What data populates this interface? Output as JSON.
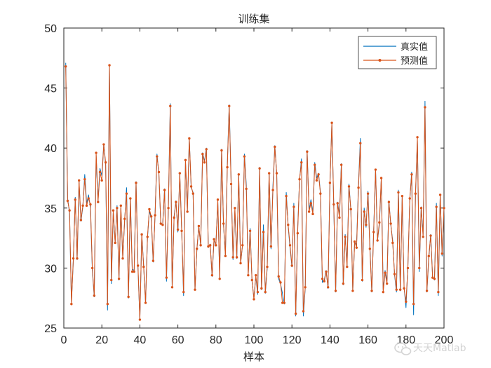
{
  "chart_data": {
    "type": "line",
    "title": "训练集",
    "xlabel": "样本",
    "ylabel": "",
    "xlim": [
      0,
      200
    ],
    "ylim": [
      25,
      50
    ],
    "xticks": [
      0,
      20,
      40,
      60,
      80,
      100,
      120,
      140,
      160,
      180,
      200
    ],
    "yticks": [
      25,
      30,
      35,
      40,
      45,
      50
    ],
    "grid": false,
    "legend_position": "top-right",
    "x": [
      1,
      2,
      3,
      4,
      5,
      6,
      7,
      8,
      9,
      10,
      11,
      12,
      13,
      14,
      15,
      16,
      17,
      18,
      19,
      20,
      21,
      22,
      23,
      24,
      25,
      26,
      27,
      28,
      29,
      30,
      31,
      32,
      33,
      34,
      35,
      36,
      37,
      38,
      39,
      40,
      41,
      42,
      43,
      44,
      45,
      46,
      47,
      48,
      49,
      50,
      51,
      52,
      53,
      54,
      55,
      56,
      57,
      58,
      59,
      60,
      61,
      62,
      63,
      64,
      65,
      66,
      67,
      68,
      69,
      70,
      71,
      72,
      73,
      74,
      75,
      76,
      77,
      78,
      79,
      80,
      81,
      82,
      83,
      84,
      85,
      86,
      87,
      88,
      89,
      90,
      91,
      92,
      93,
      94,
      95,
      96,
      97,
      98,
      99,
      100,
      101,
      102,
      103,
      104,
      105,
      106,
      107,
      108,
      109,
      110,
      111,
      112,
      113,
      114,
      115,
      116,
      117,
      118,
      119,
      120,
      121,
      122,
      123,
      124,
      125,
      126,
      127,
      128,
      129,
      130,
      131,
      132,
      133,
      134,
      135,
      136,
      137,
      138,
      139,
      140,
      141,
      142,
      143,
      144,
      145,
      146,
      147,
      148,
      149,
      150,
      151,
      152,
      153,
      154,
      155,
      156,
      157,
      158,
      159,
      160,
      161,
      162,
      163,
      164,
      165,
      166,
      167,
      168,
      169,
      170,
      171,
      172,
      173,
      174,
      175,
      176,
      177,
      178,
      179,
      180,
      181,
      182,
      183,
      184,
      185,
      186,
      187,
      188,
      189,
      190,
      191,
      192,
      193,
      194,
      195,
      196,
      197,
      198,
      199,
      200
    ],
    "series": [
      {
        "name": "真实值",
        "color": "#0072BD",
        "marker": "none",
        "values": [
          47.1,
          35.8,
          34.6,
          27.2,
          30.6,
          35.9,
          30.7,
          37.2,
          33.9,
          35.1,
          37.8,
          35.4,
          36.1,
          35.0,
          29.8,
          27.6,
          39.4,
          35.6,
          38.3,
          37.7,
          40.3,
          38.6,
          26.5,
          46.9,
          28.7,
          34.6,
          32.1,
          35.2,
          29.0,
          35.0,
          30.9,
          33.9,
          36.7,
          27.5,
          35.8,
          29.9,
          29.8,
          37.2,
          30.0,
          25.7,
          32.8,
          30.2,
          27.1,
          32.5,
          34.8,
          34.1,
          30.5,
          34.5,
          39.5,
          37.8,
          33.8,
          33.6,
          36.6,
          28.9,
          35.2,
          43.7,
          28.4,
          34.3,
          35.6,
          33.0,
          37.8,
          33.2,
          27.7,
          38.9,
          34.8,
          40.8,
          36.7,
          36.3,
          28.2,
          31.5,
          33.5,
          31.9,
          39.6,
          38.9,
          40.0,
          31.7,
          32.0,
          29.3,
          32.3,
          32.0,
          35.5,
          29.2,
          39.9,
          33.6,
          31.1,
          38.6,
          43.6,
          37.3,
          30.7,
          34.8,
          30.8,
          37.8,
          30.4,
          31.9,
          39.5,
          36.9,
          29.4,
          33.3,
          28.9,
          27.5,
          29.3,
          27.8,
          38.4,
          28.2,
          33.6,
          27.9,
          30.0,
          37.9,
          31.6,
          36.8,
          40.2,
          37.8,
          29.1,
          28.7,
          27.9,
          27.0,
          36.3,
          33.5,
          31.7,
          30.1,
          35.4,
          26.0,
          33.2,
          37.3,
          39.1,
          26.0,
          28.3,
          39.8,
          34.8,
          35.7,
          34.6,
          38.8,
          37.5,
          37.9,
          36.3,
          28.8,
          29.0,
          29.8,
          28.3,
          37.0,
          42.1,
          35.2,
          28.0,
          35.5,
          34.4,
          38.7,
          28.6,
          32.8,
          30.2,
          37.0,
          34.8,
          28.1,
          32.2,
          31.9,
          36.9,
          40.8,
          28.9,
          35.0,
          33.4,
          36.4,
          31.9,
          28.0,
          33.2,
          38.2,
          32.3,
          33.6,
          37.4,
          28.2,
          29.8,
          28.9,
          35.6,
          33.6,
          32.3,
          29.4,
          28.0,
          36.5,
          28.1,
          35.9,
          28.4,
          26.7,
          30.2,
          35.7,
          38.0,
          26.1,
          36.1,
          40.6,
          29.7,
          35.1,
          32.8,
          43.9,
          28.0,
          30.8,
          32.8,
          29.3,
          29.0,
          35.4,
          27.7,
          36.1,
          31.0,
          35.1
        ]
      },
      {
        "name": "预测值",
        "color": "#D95319",
        "marker": "dot",
        "values": [
          46.8,
          35.6,
          34.8,
          27.0,
          30.8,
          35.7,
          30.8,
          37.3,
          34.0,
          35.2,
          37.4,
          35.2,
          35.8,
          35.3,
          30.0,
          27.7,
          39.6,
          35.5,
          38.0,
          37.3,
          40.3,
          38.8,
          27.0,
          46.9,
          29.0,
          34.8,
          32.1,
          35.0,
          29.1,
          35.2,
          30.8,
          34.1,
          36.2,
          27.6,
          35.8,
          29.7,
          29.7,
          37.1,
          30.2,
          25.7,
          32.8,
          30.1,
          27.1,
          32.6,
          34.9,
          34.3,
          30.6,
          34.4,
          39.3,
          38.0,
          33.7,
          33.6,
          36.5,
          29.2,
          35.0,
          43.5,
          28.4,
          34.2,
          35.5,
          33.2,
          37.9,
          33.1,
          28.0,
          39.0,
          34.7,
          40.8,
          36.8,
          36.2,
          28.2,
          31.6,
          33.5,
          31.9,
          39.5,
          38.8,
          39.9,
          31.8,
          31.9,
          29.4,
          32.4,
          31.9,
          35.7,
          29.1,
          39.8,
          33.7,
          31.0,
          38.4,
          43.5,
          37.0,
          30.9,
          35.0,
          30.9,
          37.8,
          30.4,
          31.9,
          39.3,
          36.6,
          29.4,
          33.1,
          29.0,
          27.4,
          29.4,
          28.0,
          38.3,
          28.3,
          33.0,
          28.0,
          30.1,
          37.9,
          31.8,
          36.5,
          40.1,
          37.9,
          29.3,
          28.8,
          27.1,
          27.1,
          36.0,
          33.6,
          31.9,
          30.2,
          35.1,
          26.2,
          32.9,
          37.4,
          38.8,
          26.4,
          28.4,
          39.7,
          34.7,
          35.4,
          34.5,
          38.6,
          37.3,
          37.8,
          36.2,
          29.1,
          28.9,
          29.7,
          28.4,
          37.1,
          42.1,
          35.3,
          28.1,
          35.4,
          34.2,
          38.6,
          28.7,
          32.6,
          30.1,
          36.8,
          34.9,
          28.1,
          32.2,
          31.7,
          36.7,
          40.4,
          29.0,
          34.7,
          33.6,
          36.2,
          31.6,
          28.1,
          33.0,
          38.2,
          32.3,
          33.8,
          37.5,
          28.0,
          29.6,
          28.7,
          35.5,
          33.7,
          32.1,
          29.5,
          28.2,
          36.3,
          28.2,
          36.0,
          28.3,
          27.2,
          30.0,
          35.8,
          37.8,
          27.0,
          36.2,
          40.9,
          30.0,
          35.0,
          32.6,
          43.4,
          28.1,
          31.0,
          32.7,
          29.2,
          29.1,
          35.1,
          28.0,
          36.1,
          31.2,
          35.0
        ]
      }
    ]
  },
  "watermark": {
    "icon": "wechat-icon",
    "text": "天天Matlab"
  }
}
